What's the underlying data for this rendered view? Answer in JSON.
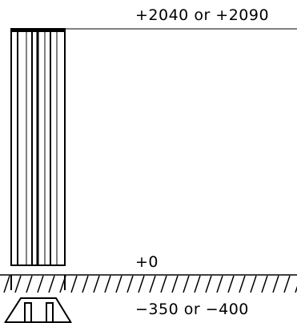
{
  "elevations": {
    "top": "+2040 or +2090",
    "ground": "+0",
    "foundation": "−350 or −400"
  },
  "colors": {
    "line": "#000000",
    "background": "#ffffff"
  }
}
